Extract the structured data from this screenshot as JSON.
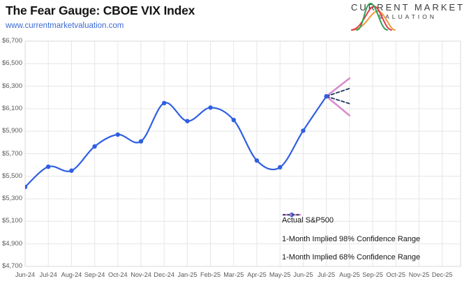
{
  "header": {
    "title": "The Fear Gauge: CBOE VIX Index",
    "subtitle_link": "www.currentmarketvaluation.com",
    "logo": {
      "line1": "CURRENT MARKET",
      "line2": "VALUATION"
    }
  },
  "chart_data": {
    "type": "line",
    "title": "The Fear Gauge: CBOE VIX Index",
    "x_categories": [
      "Jun-24",
      "Jul-24",
      "Aug-24",
      "Sep-24",
      "Oct-24",
      "Nov-24",
      "Dec-24",
      "Jan-25",
      "Feb-25",
      "Mar-25",
      "Apr-25",
      "May-25",
      "Jun-25",
      "Jul-25",
      "Aug-25",
      "Sep-25",
      "Oct-25",
      "Nov-25",
      "Dec-25"
    ],
    "y_axis": {
      "min": 4700,
      "max": 6700,
      "step": 200
    },
    "y_tick_labels": [
      "$6,700",
      "$6,500",
      "$6,300",
      "$6,100",
      "$5,900",
      "$5,700",
      "$5,500",
      "$5,300",
      "$5,100",
      "$4,900",
      "$4,700"
    ],
    "grid": true,
    "legend_position": "inside-bottom-right",
    "series": [
      {
        "name": "Actual S&P500",
        "type": "line-markers",
        "color": "#2f5fe3",
        "x": [
          "Jun-24",
          "Jul-24",
          "Aug-24",
          "Sep-24",
          "Oct-24",
          "Nov-24",
          "Dec-24",
          "Jan-25",
          "Feb-25",
          "Mar-25",
          "Apr-25",
          "May-25",
          "Jun-25",
          "Jul-25"
        ],
        "values": [
          5405,
          5585,
          5550,
          5765,
          5870,
          5810,
          6150,
          5990,
          6110,
          6000,
          5640,
          5580,
          5905,
          6210
        ]
      },
      {
        "name": "1-Month Implied 98% Confidence Range",
        "type": "fan",
        "line_style": "solid",
        "color": "#d98cce",
        "from_x": "Jul-25",
        "from_value": 6210,
        "to_x": "Aug-25",
        "upper": 6370,
        "lower": 6040
      },
      {
        "name": "1-Month Implied 68% Confidence Range",
        "type": "fan",
        "line_style": "dashed",
        "color": "#1f3864",
        "from_x": "Jul-25",
        "from_value": 6210,
        "to_x": "Aug-25",
        "upper": 6280,
        "lower": 6145
      }
    ],
    "colors": {
      "gridline": "#e6e6e6",
      "plot_border": "#d9d9d9",
      "axis_text": "#595959",
      "actual_line": "#2f5fe3",
      "ci98_line": "#d98cce",
      "ci68_line": "#1f3864"
    }
  }
}
